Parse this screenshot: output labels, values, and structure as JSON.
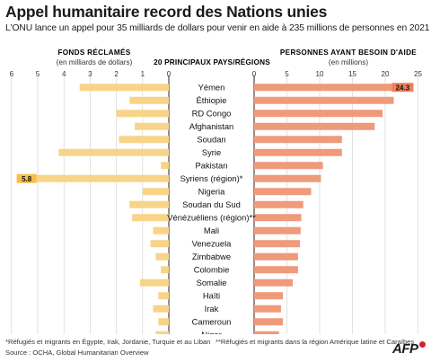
{
  "title": "Appel humanitaire record des Nations unies",
  "subtitle": "L'ONU lance un appel pour 35 milliards de dollars pour venir en aide à 235 millions de personnes en 2021",
  "footnote_left": "*Réfugiés et migrants en Égypte, Irak, Jordanie, Turquie et au Liban",
  "footnote_right": "**Réfugiés et migrants dans la région Amérique latine et Caraïbes",
  "source": "Source : OCHA, Global Humanitarian Overview",
  "logo_text": "AFP",
  "colors": {
    "funds": "#f7d488",
    "people": "#ef9a7b",
    "highlight_label_bg": "#f5c04a",
    "highlight_label_bg_right": "#ef7f5d"
  },
  "chart_data": [
    {
      "type": "bar",
      "title": "Fonds réclamés",
      "unit_label": "(en milliards de dollars)",
      "orientation": "horizontal",
      "direction": "leftward",
      "xlim": [
        0,
        6
      ],
      "ticks": [
        6,
        5,
        4,
        3,
        2,
        1,
        0
      ],
      "categories": [
        "Yémen",
        "Éthiopie",
        "RD Congo",
        "Afghanistan",
        "Soudan",
        "Syrie",
        "Pakistan",
        "Syriens (région)*",
        "Nigeria",
        "Soudan du Sud",
        "Vénézuéliens (région)**",
        "Mali",
        "Venezuela",
        "Zimbabwe",
        "Colombie",
        "Somalie",
        "Haïti",
        "Irak",
        "Cameroun",
        "Niger"
      ],
      "values": [
        3.4,
        1.5,
        2.0,
        1.3,
        1.9,
        4.2,
        0.3,
        5.8,
        1.0,
        1.5,
        1.4,
        0.6,
        0.7,
        0.5,
        0.3,
        1.1,
        0.4,
        0.6,
        0.4,
        0.5
      ],
      "data_labels": [
        {
          "category": "Syriens (région)*",
          "value": "5.8"
        }
      ]
    },
    {
      "type": "bar",
      "title": "Personnes ayant besoin d'aide",
      "unit_label": "(en millions)",
      "orientation": "horizontal",
      "direction": "rightward",
      "xlim": [
        0,
        25
      ],
      "ticks": [
        0,
        5,
        10,
        15,
        20,
        25
      ],
      "categories": [
        "Yémen",
        "Éthiopie",
        "RD Congo",
        "Afghanistan",
        "Soudan",
        "Syrie",
        "Pakistan",
        "Syriens (région)*",
        "Nigeria",
        "Soudan du Sud",
        "Vénézuéliens (région)**",
        "Mali",
        "Venezuela",
        "Zimbabwe",
        "Colombie",
        "Somalie",
        "Haïti",
        "Irak",
        "Cameroun",
        "Niger"
      ],
      "values": [
        24.3,
        21.3,
        19.6,
        18.4,
        13.4,
        13.4,
        10.5,
        10.2,
        8.7,
        7.5,
        7.2,
        7.1,
        7.0,
        6.7,
        6.7,
        5.9,
        4.4,
        4.1,
        4.4,
        3.8
      ],
      "data_labels": [
        {
          "category": "Yémen",
          "value": "24.3"
        }
      ]
    }
  ],
  "center_header": "20 principaux pays/régions"
}
